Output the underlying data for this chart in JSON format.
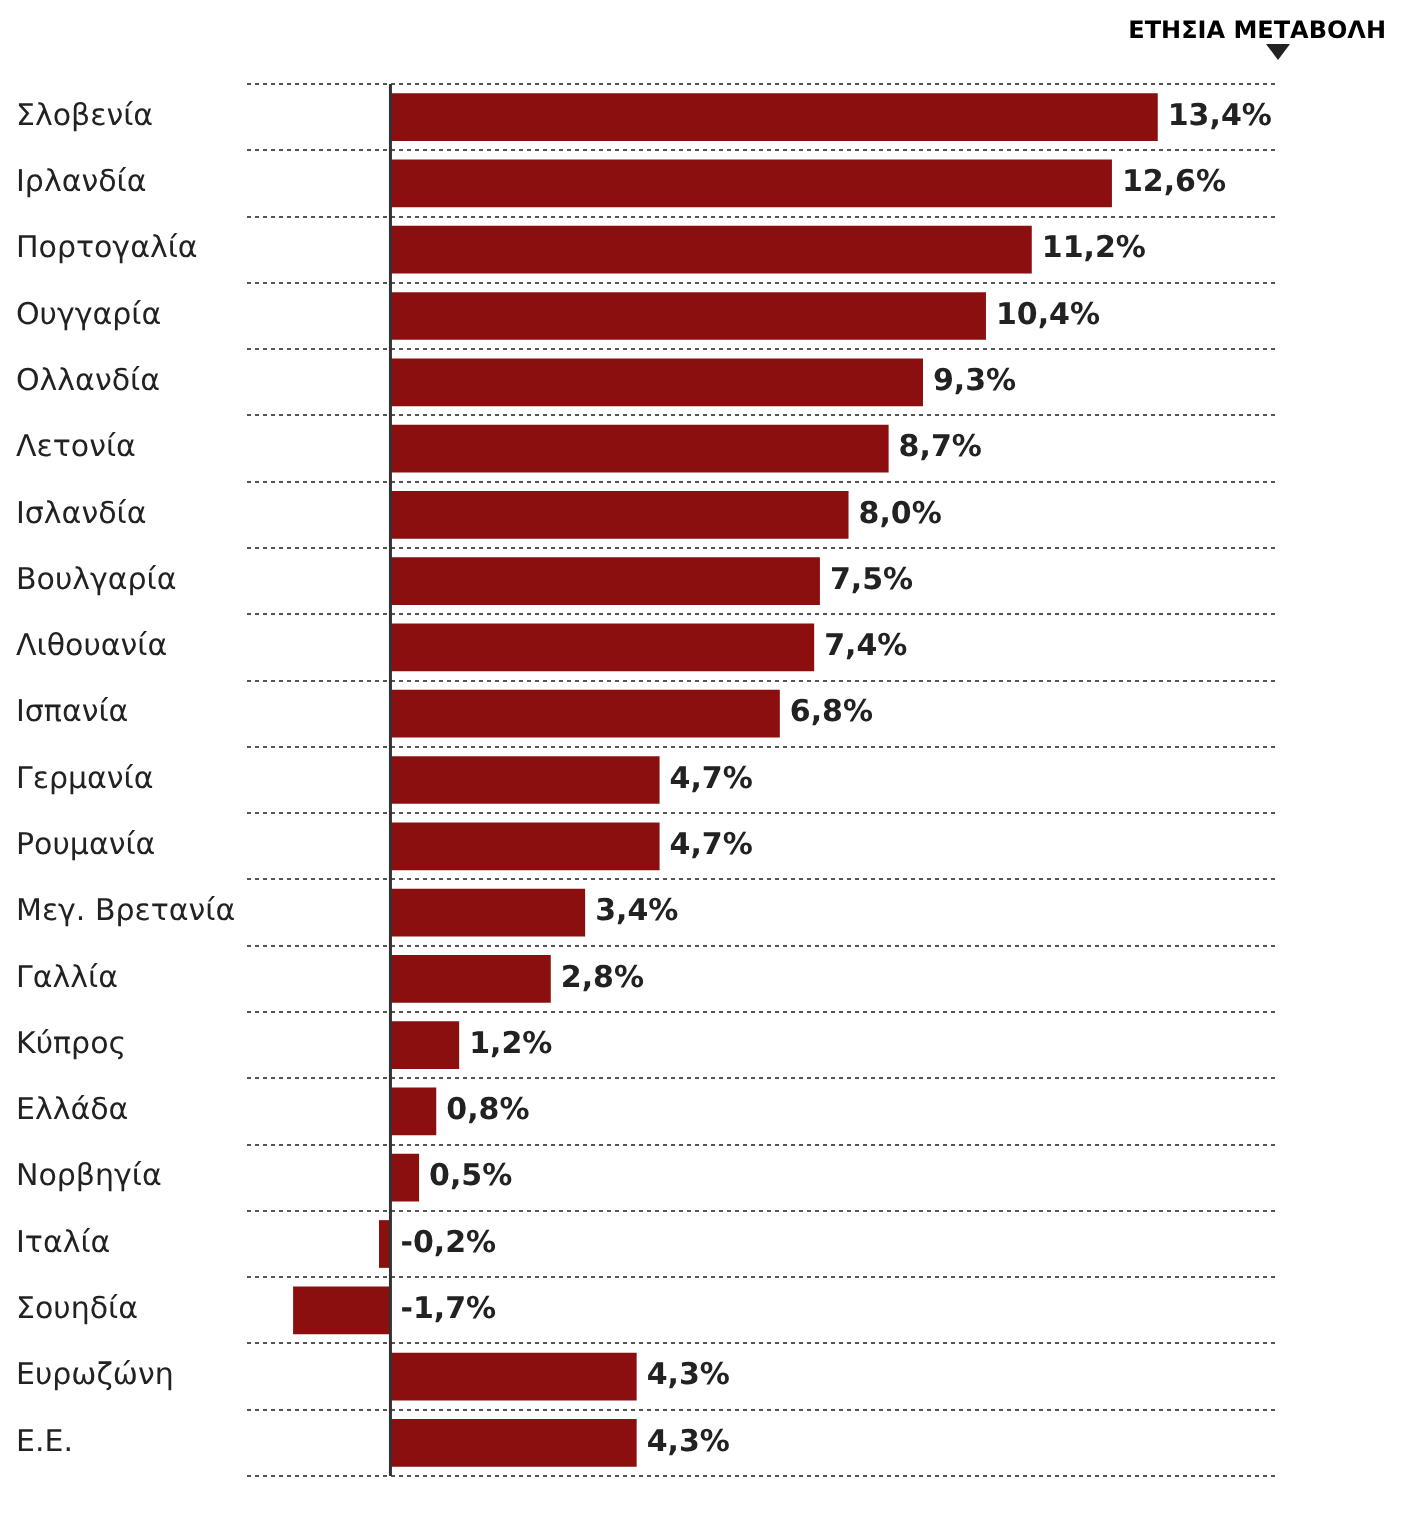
{
  "chart_data": {
    "type": "bar",
    "orientation": "horizontal",
    "title": "ΕΤΗΣΙΑ ΜΕΤΑΒΟΛΗ",
    "categories": [
      "Σλοβενία",
      "Ιρλανδία",
      "Πορτογαλία",
      "Ουγγαρία",
      "Ολλανδία",
      "Λετονία",
      "Ισλανδία",
      "Βουλγαρία",
      "Λιθουανία",
      "Ισπανία",
      "Γερμανία",
      "Ρουμανία",
      "Μεγ. Βρετανία",
      "Γαλλία",
      "Κύπρος",
      "Ελλάδα",
      "Νορβηγία",
      "Ιταλία",
      "Σουηδία",
      "Ευρωζώνη",
      "Ε.Ε."
    ],
    "values": [
      13.4,
      12.6,
      11.2,
      10.4,
      9.3,
      8.7,
      8.0,
      7.5,
      7.4,
      6.8,
      4.7,
      4.7,
      3.4,
      2.8,
      1.2,
      0.8,
      0.5,
      -0.2,
      -1.7,
      4.3,
      4.3
    ],
    "value_labels": [
      "13,4%",
      "12,6%",
      "11,2%",
      "10,4%",
      "9,3%",
      "8,7%",
      "8,0%",
      "7,5%",
      "7,4%",
      "6,8%",
      "4,7%",
      "4,7%",
      "3,4%",
      "2,8%",
      "1,2%",
      "0,8%",
      "0,5%",
      "-0,2%",
      "-1,7%",
      "4,3%",
      "4,3%"
    ],
    "color": "#8b0f0f",
    "xlim": [
      -2.5,
      15.5
    ],
    "tick_labels": "y",
    "grid": "y",
    "ref_lines": [
      {
        "axis": "x",
        "value": 0,
        "color": "#333333"
      }
    ]
  }
}
